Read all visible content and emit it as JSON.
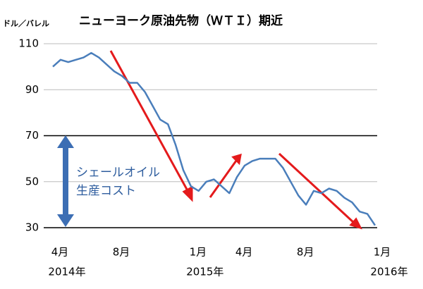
{
  "chart_data": {
    "type": "line",
    "title": "ニューヨーク原油先物（ＷＴＩ）期近",
    "y_unit": "ドル／バレル",
    "annotation": [
      "シェールオイル",
      "生産コスト"
    ],
    "categories": [
      "4月",
      null,
      null,
      null,
      null,
      null,
      null,
      null,
      "8月",
      null,
      null,
      null,
      null,
      null,
      null,
      null,
      null,
      null,
      "1月",
      null,
      null,
      null,
      null,
      null,
      "4月",
      null,
      null,
      null,
      null,
      null,
      null,
      null,
      "8月",
      null,
      null,
      null,
      null,
      null,
      null,
      null,
      null,
      null,
      "1月"
    ],
    "years": [
      "2014年",
      null,
      null,
      null,
      null,
      null,
      null,
      null,
      null,
      null,
      null,
      null,
      null,
      null,
      null,
      null,
      null,
      null,
      "2015年",
      null,
      null,
      null,
      null,
      null,
      null,
      null,
      null,
      null,
      null,
      null,
      null,
      null,
      null,
      null,
      null,
      null,
      null,
      null,
      null,
      null,
      null,
      null,
      "2016年"
    ],
    "values": [
      100,
      103,
      102,
      103,
      104,
      106,
      104,
      101,
      98,
      96,
      93,
      93,
      89,
      83,
      77,
      75,
      66,
      55,
      48,
      46,
      50,
      51,
      48,
      45,
      52,
      57,
      59,
      60,
      60,
      60,
      56,
      50,
      44,
      40,
      46,
      45,
      47,
      46,
      43,
      41,
      37,
      36,
      31
    ],
    "color": "#4a7ebb",
    "ylim": [
      30,
      110
    ],
    "yticks": [
      30,
      50,
      70,
      90,
      110
    ],
    "grid": true,
    "reference_lines": [
      30,
      70
    ]
  }
}
